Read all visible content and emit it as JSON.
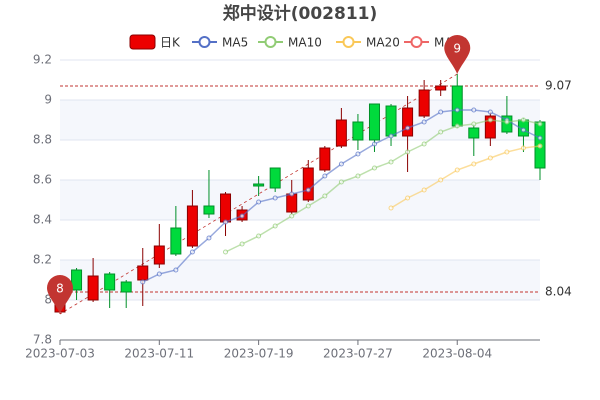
{
  "chart_data": {
    "type": "candlestick",
    "title": "郑中设计(002811)",
    "categories": [
      "2023-07-03",
      null,
      null,
      null,
      null,
      null,
      "2023-07-11",
      null,
      null,
      null,
      null,
      null,
      "2023-07-19",
      null,
      null,
      null,
      null,
      null,
      "2023-07-27",
      null,
      null,
      null,
      null,
      null,
      "2023-08-04",
      null,
      null,
      null,
      null,
      null
    ],
    "candles": {
      "name": "日K",
      "up_color": "#ec0000",
      "down_color": "#00da3c",
      "open": [
        7.94,
        8.15,
        8.0,
        8.13,
        8.09,
        8.1,
        8.18,
        8.36,
        8.27,
        8.47,
        8.39,
        8.4,
        8.58,
        8.66,
        8.44,
        8.5,
        8.65,
        8.77,
        8.89,
        8.98,
        8.97,
        8.82,
        8.92,
        9.05,
        9.07,
        8.86,
        8.81,
        8.92,
        8.9,
        8.89
      ],
      "close": [
        8.04,
        8.05,
        8.12,
        8.05,
        8.04,
        8.17,
        8.27,
        8.23,
        8.47,
        8.43,
        8.53,
        8.45,
        8.57,
        8.56,
        8.53,
        8.66,
        8.76,
        8.9,
        8.8,
        8.8,
        8.82,
        8.96,
        9.05,
        9.07,
        8.87,
        8.81,
        8.92,
        8.84,
        8.82,
        8.66
      ],
      "low": [
        7.93,
        8.0,
        7.99,
        7.96,
        7.96,
        7.97,
        8.16,
        8.22,
        8.26,
        8.41,
        8.32,
        8.39,
        8.52,
        8.54,
        8.43,
        8.49,
        8.64,
        8.76,
        8.75,
        8.74,
        8.77,
        8.64,
        8.91,
        9.02,
        8.86,
        8.72,
        8.77,
        8.83,
        8.74,
        8.6
      ],
      "high": [
        8.05,
        8.16,
        8.21,
        8.14,
        8.1,
        8.26,
        8.38,
        8.47,
        8.55,
        8.65,
        8.54,
        8.47,
        8.62,
        8.66,
        8.6,
        8.7,
        8.77,
        8.96,
        8.93,
        8.98,
        8.98,
        9.02,
        9.1,
        9.1,
        9.13,
        8.88,
        8.94,
        9.02,
        8.91,
        8.9
      ]
    },
    "series": [
      {
        "name": "MA5",
        "color": "#5470c6",
        "values": [
          null,
          null,
          null,
          null,
          null,
          8.09,
          8.13,
          8.15,
          8.24,
          8.31,
          8.39,
          8.42,
          8.49,
          8.51,
          8.53,
          8.55,
          8.62,
          8.68,
          8.73,
          8.78,
          8.82,
          8.86,
          8.89,
          8.94,
          8.95,
          8.95,
          8.94,
          8.9,
          8.85,
          8.81
        ]
      },
      {
        "name": "MA10",
        "color": "#91cc75",
        "values": [
          null,
          null,
          null,
          null,
          null,
          null,
          null,
          null,
          null,
          null,
          8.24,
          8.28,
          8.32,
          8.37,
          8.42,
          8.47,
          8.52,
          8.59,
          8.62,
          8.66,
          8.69,
          8.74,
          8.78,
          8.84,
          8.87,
          8.88,
          8.9,
          8.89,
          8.9,
          8.88
        ]
      },
      {
        "name": "MA20",
        "color": "#fac858",
        "values": [
          null,
          null,
          null,
          null,
          null,
          null,
          null,
          null,
          null,
          null,
          null,
          null,
          null,
          null,
          null,
          null,
          null,
          null,
          null,
          null,
          8.46,
          8.51,
          8.55,
          8.6,
          8.65,
          8.68,
          8.71,
          8.74,
          8.76,
          8.77
        ]
      },
      {
        "name": "MA30",
        "color": "#ee6666",
        "values": [
          null,
          null,
          null,
          null,
          null,
          null,
          null,
          null,
          null,
          null,
          null,
          null,
          null,
          null,
          null,
          null,
          null,
          null,
          null,
          null,
          null,
          null,
          null,
          null,
          null,
          null,
          null,
          null,
          null,
          null
        ]
      }
    ],
    "ylim": [
      7.8,
      9.2
    ],
    "yticks": [
      7.8,
      8,
      8.2,
      8.4,
      8.6,
      8.8,
      9,
      9.2
    ],
    "grid": true,
    "mark_points": [
      {
        "index": 24,
        "value": 9.13,
        "label": "9"
      },
      {
        "index": 0,
        "value": 7.93,
        "label": "8"
      }
    ],
    "mark_lines": [
      9.07,
      8.04
    ],
    "mark_color": "#c23531"
  }
}
